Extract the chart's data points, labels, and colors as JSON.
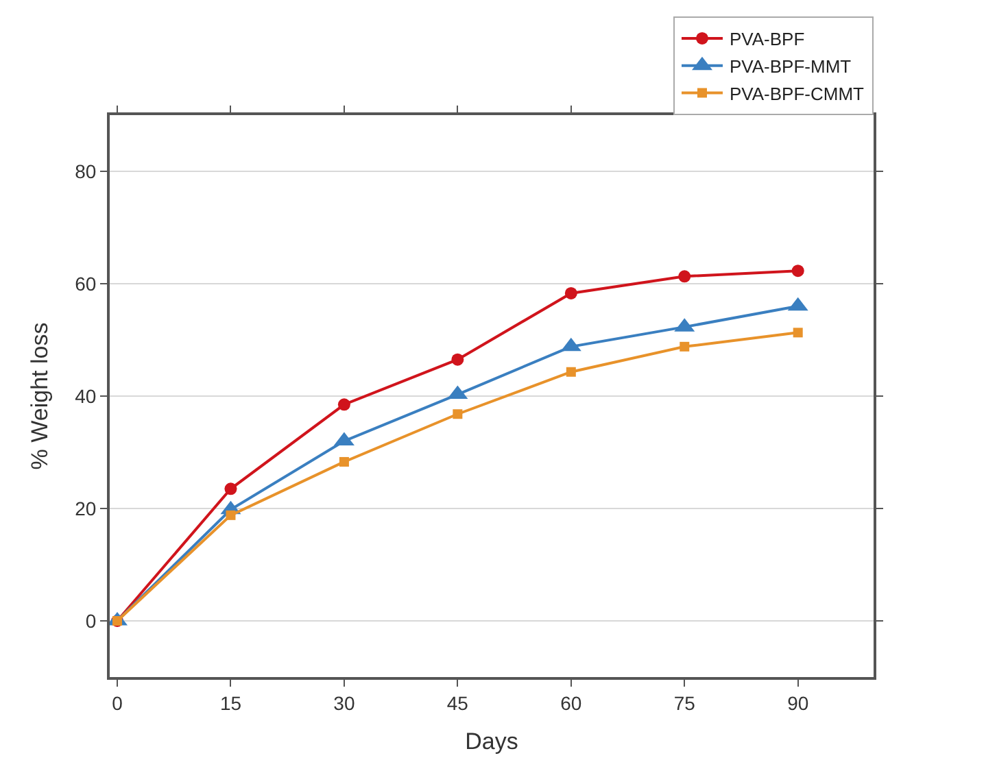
{
  "chart_data": {
    "type": "line",
    "xlabel": "Days",
    "ylabel": "% Weight loss",
    "x": [
      0,
      15,
      30,
      45,
      60,
      75,
      90
    ],
    "series": [
      {
        "name": "PVA-BPF",
        "color": "#d0141c",
        "marker": "circle",
        "values": [
          0,
          23.5,
          38.5,
          46.5,
          58.3,
          61.3,
          62.3
        ]
      },
      {
        "name": "PVA-BPF-MMT",
        "color": "#3a7fc0",
        "marker": "triangle",
        "values": [
          0,
          19.8,
          32,
          40.3,
          48.8,
          52.3,
          56
        ]
      },
      {
        "name": "PVA-BPF-CMMT",
        "color": "#e8922a",
        "marker": "square",
        "values": [
          0,
          18.8,
          28.3,
          36.8,
          44.3,
          48.8,
          51.3
        ]
      }
    ],
    "xlim": [
      -1,
      100
    ],
    "xticks": [
      0,
      15,
      30,
      45,
      60,
      75,
      90
    ],
    "ylim": [
      -10,
      90
    ],
    "yticks": [
      0,
      20,
      40,
      60,
      80
    ],
    "grid": "y",
    "legend": "top right",
    "line_style": "solid"
  }
}
